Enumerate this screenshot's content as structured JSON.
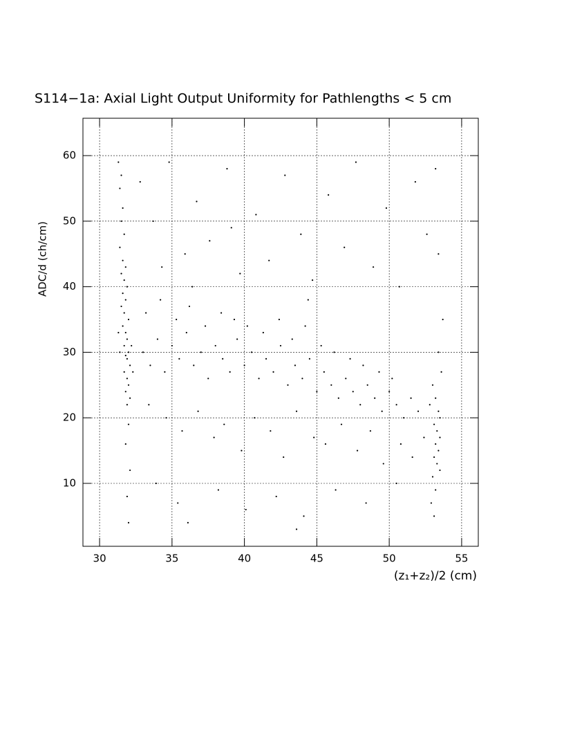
{
  "chart_data": {
    "type": "scatter",
    "title": "S114−1a: Axial Light Output Uniformity for Pathlengths < 5 cm",
    "x_label": "(z₁+z₂)/2 (cm)",
    "y_label": "ADC/d (ch/cm)",
    "xlim": [
      28.85,
      56.15
    ],
    "ylim": [
      0.4,
      65.7
    ],
    "xticks": [
      30,
      35,
      40,
      45,
      50,
      55
    ],
    "yticks": [
      10,
      20,
      30,
      40,
      50,
      60
    ],
    "grid": true,
    "color": "#000000",
    "x": [
      31.3,
      31.5,
      31.4,
      31.6,
      31.5,
      31.7,
      31.4,
      31.6,
      31.8,
      31.5,
      31.7,
      31.9,
      31.6,
      31.8,
      31.5,
      31.7,
      32.0,
      31.6,
      31.8,
      31.9,
      31.7,
      32.0,
      31.8,
      31.9,
      32.1,
      31.7,
      31.9,
      32.0,
      31.8,
      32.1,
      31.9,
      32.0,
      31.8,
      32.1,
      31.9,
      32.0,
      31.4,
      31.3,
      32.2,
      32.3,
      33,
      33.5,
      34,
      34.5,
      35,
      35.5,
      36,
      36.5,
      37,
      37.5,
      38,
      38.5,
      39,
      39.5,
      40,
      40.5,
      41,
      41.5,
      42,
      42.5,
      43,
      43.5,
      44,
      44.5,
      45,
      45.5,
      46,
      46.5,
      47,
      47.5,
      48,
      48.5,
      49,
      49.5,
      50,
      50.5,
      51,
      51.5,
      52,
      33.2,
      34.2,
      35.3,
      36.2,
      37.3,
      38.4,
      39.3,
      40.2,
      41.3,
      42.4,
      43.3,
      44.2,
      45.3,
      46.2,
      47.3,
      48.2,
      49.3,
      50.2,
      33.4,
      34.6,
      35.7,
      36.8,
      37.9,
      38.6,
      39.8,
      40.7,
      41.8,
      42.7,
      43.6,
      44.8,
      45.6,
      46.7,
      47.8,
      48.7,
      49.6,
      50.8,
      51.6,
      52.4,
      33.9,
      35.4,
      36.1,
      38.2,
      40.1,
      42.2,
      44.1,
      46.3,
      48.4,
      50.5,
      43.6,
      32.8,
      33.7,
      34.8,
      35.9,
      36.7,
      37.6,
      38.8,
      39.7,
      40.8,
      41.7,
      42.8,
      43.9,
      44.7,
      45.8,
      46.9,
      47.7,
      48.9,
      49.8,
      50.7,
      51.8,
      52.6,
      53.2,
      53.4,
      34.3,
      36.4,
      39.1,
      44.4,
      53.0,
      53.2,
      53.4,
      53.1,
      53.3,
      53.5,
      53.2,
      53.4,
      53.1,
      53.3,
      53.5,
      53.0,
      53.2,
      52.9,
      53.1,
      53.6,
      53.4,
      53.7,
      53.5,
      52.8
    ],
    "y": [
      59,
      57,
      55,
      52,
      50,
      48,
      46,
      44,
      43,
      42,
      41,
      40,
      39,
      38,
      37,
      36,
      35,
      34,
      33,
      32,
      31,
      30,
      29.5,
      29,
      28,
      27,
      26,
      25,
      24,
      23,
      22,
      19,
      16,
      12,
      8,
      4,
      30,
      33,
      31,
      27,
      30,
      28,
      32,
      27,
      31,
      29,
      33,
      28,
      30,
      26,
      31,
      29,
      27,
      32,
      28,
      30,
      26,
      29,
      27,
      31,
      25,
      28,
      26,
      29,
      24,
      27,
      25,
      23,
      26,
      24,
      22,
      25,
      23,
      21,
      24,
      22,
      20,
      23,
      21,
      36,
      38,
      35,
      37,
      34,
      36,
      35,
      34,
      33,
      35,
      32,
      34,
      31,
      30,
      29,
      28,
      27,
      26,
      22,
      20,
      18,
      21,
      17,
      19,
      15,
      20,
      18,
      14,
      21,
      17,
      16,
      19,
      15,
      18,
      13,
      16,
      14,
      17,
      10,
      7,
      4,
      9,
      6,
      8,
      5,
      9,
      7,
      10,
      3,
      56,
      50,
      59,
      45,
      53,
      47,
      58,
      42,
      51,
      44,
      57,
      48,
      41,
      54,
      46,
      59,
      43,
      52,
      40,
      56,
      48,
      58,
      45,
      43,
      40,
      49,
      38,
      25,
      23,
      21,
      19,
      18,
      17,
      16,
      15,
      14,
      13,
      12,
      11,
      9,
      7,
      5,
      27,
      30,
      35,
      20,
      22
    ]
  }
}
